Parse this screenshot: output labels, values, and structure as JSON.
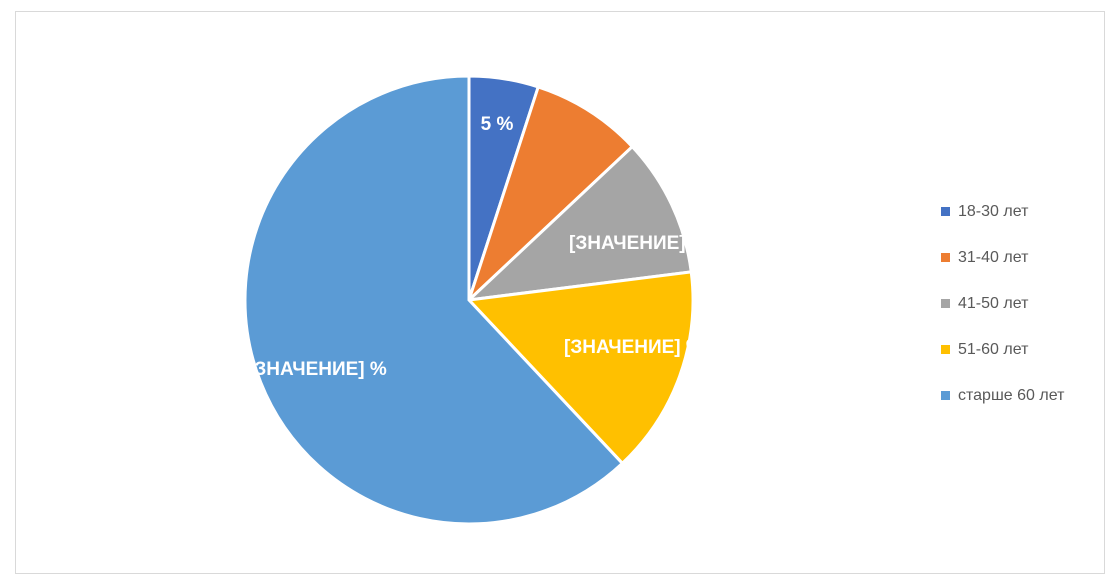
{
  "chart_data": {
    "type": "pie",
    "title": "",
    "legend_position": "right",
    "start_angle_deg": 0,
    "direction": "clockwise",
    "slices": [
      {
        "name": "18-30 лет",
        "value": 5,
        "color": "#4472C4",
        "label": "5 %"
      },
      {
        "name": "31-40 лет",
        "value": 8,
        "color": "#ED7D31",
        "label": ""
      },
      {
        "name": "41-50 лет",
        "value": 10,
        "color": "#A5A5A5",
        "label": "[ЗНАЧЕНИЕ] %"
      },
      {
        "name": "51-60 лет",
        "value": 15,
        "color": "#FFC000",
        "label": "[ЗНАЧЕНИЕ] %"
      },
      {
        "name": "старше 60 лет",
        "value": 62,
        "color": "#5B9BD5",
        "label": "[ЗНАЧЕНИЕ] %"
      }
    ]
  }
}
